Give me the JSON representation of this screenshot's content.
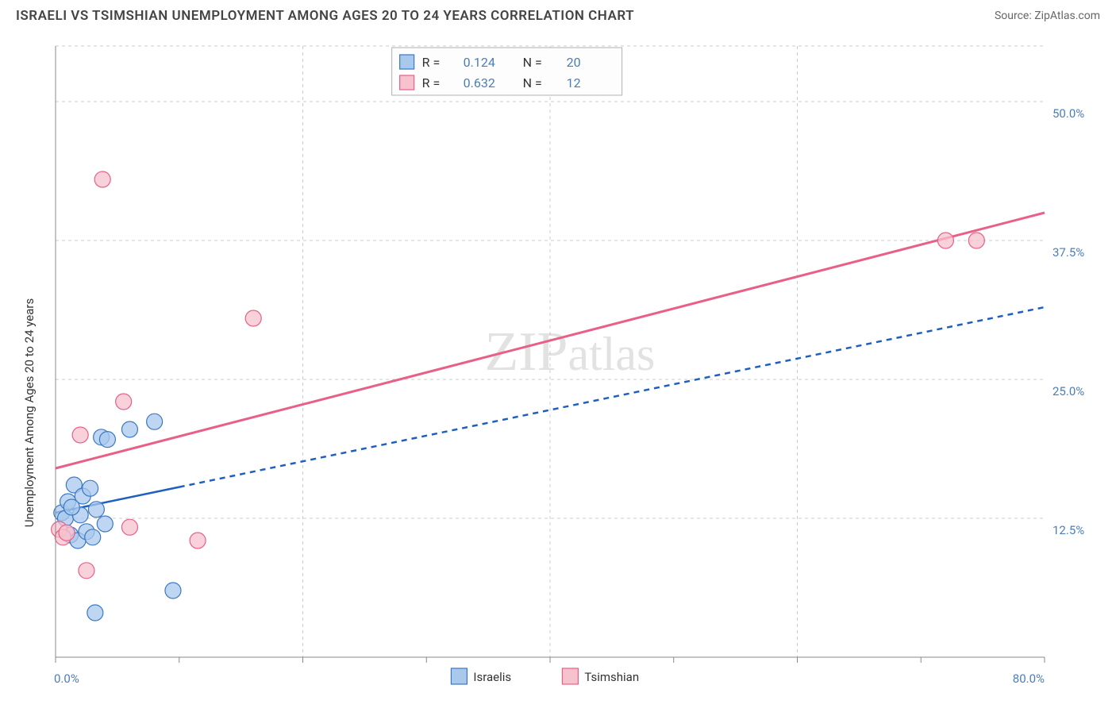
{
  "title": "ISRAELI VS TSIMSHIAN UNEMPLOYMENT AMONG AGES 20 TO 24 YEARS CORRELATION CHART",
  "source": "Source: ZipAtlas.com",
  "watermark_part1": "ZIP",
  "watermark_part2": "atlas",
  "chart": {
    "type": "scatter",
    "background_color": "#ffffff",
    "grid_color": "#cccccc",
    "axis_color": "#888888",
    "tick_label_color": "#4a7ebb",
    "yaxis_label": "Unemployment Among Ages 20 to 24 years",
    "yaxis_label_fontsize": 15,
    "xlim": [
      0,
      80
    ],
    "ylim": [
      0,
      55
    ],
    "xtick_labels": [
      "0.0%",
      "80.0%"
    ],
    "ytick_values": [
      12.5,
      25.0,
      37.5,
      50.0
    ],
    "ytick_labels": [
      "12.5%",
      "25.0%",
      "37.5%",
      "50.0%"
    ],
    "series": [
      {
        "name": "Israelis",
        "marker_fill": "#a8c8ec",
        "marker_stroke": "#3b78c4",
        "marker_radius": 10,
        "marker_opacity": 0.75,
        "line_color": "#1f5fbf",
        "line_width": 2.5,
        "line_solid_until_x": 10,
        "line_dash": "7 6",
        "R": "0.124",
        "N": "20",
        "regression": {
          "x1": 0,
          "y1": 13.0,
          "x2": 80,
          "y2": 31.5
        },
        "points": [
          {
            "x": 0.5,
            "y": 13.0
          },
          {
            "x": 0.8,
            "y": 12.5
          },
          {
            "x": 1.0,
            "y": 14.0
          },
          {
            "x": 1.2,
            "y": 11.0
          },
          {
            "x": 1.5,
            "y": 15.5
          },
          {
            "x": 1.8,
            "y": 10.5
          },
          {
            "x": 2.0,
            "y": 12.8
          },
          {
            "x": 2.2,
            "y": 14.5
          },
          {
            "x": 2.5,
            "y": 11.3
          },
          {
            "x": 2.8,
            "y": 15.2
          },
          {
            "x": 3.0,
            "y": 10.8
          },
          {
            "x": 3.3,
            "y": 13.3
          },
          {
            "x": 3.7,
            "y": 19.8
          },
          {
            "x": 4.0,
            "y": 12.0
          },
          {
            "x": 4.2,
            "y": 19.6
          },
          {
            "x": 6.0,
            "y": 20.5
          },
          {
            "x": 8.0,
            "y": 21.2
          },
          {
            "x": 3.2,
            "y": 4.0
          },
          {
            "x": 9.5,
            "y": 6.0
          },
          {
            "x": 1.3,
            "y": 13.5
          }
        ]
      },
      {
        "name": "Tsimshian",
        "marker_fill": "#f5c2cd",
        "marker_stroke": "#e85f88",
        "marker_radius": 10,
        "marker_opacity": 0.75,
        "line_color": "#e85f88",
        "line_width": 3,
        "line_dash": "none",
        "R": "0.632",
        "N": "12",
        "regression": {
          "x1": 0,
          "y1": 17.0,
          "x2": 80,
          "y2": 40.0
        },
        "points": [
          {
            "x": 0.3,
            "y": 11.5
          },
          {
            "x": 0.6,
            "y": 10.8
          },
          {
            "x": 0.9,
            "y": 11.2
          },
          {
            "x": 2.0,
            "y": 20.0
          },
          {
            "x": 3.8,
            "y": 43.0
          },
          {
            "x": 5.5,
            "y": 23.0
          },
          {
            "x": 6.0,
            "y": 11.7
          },
          {
            "x": 11.5,
            "y": 10.5
          },
          {
            "x": 2.5,
            "y": 7.8
          },
          {
            "x": 16.0,
            "y": 30.5
          },
          {
            "x": 72.0,
            "y": 37.5
          },
          {
            "x": 74.5,
            "y": 37.5
          }
        ]
      }
    ],
    "top_legend": {
      "r_label": "R  =",
      "n_label": "N  ="
    },
    "bottom_legend": {
      "items": [
        "Israelis",
        "Tsimshian"
      ]
    }
  }
}
